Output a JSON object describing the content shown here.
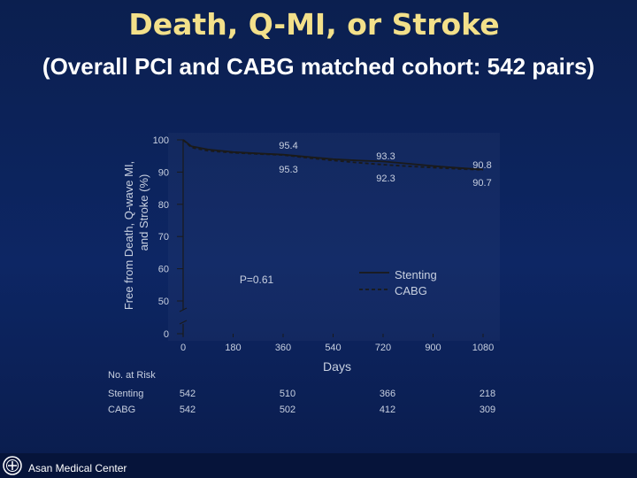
{
  "slide": {
    "title": "Death, Q-MI, or Stroke",
    "subtitle": "(Overall PCI and CABG matched cohort: 542 pairs)",
    "footer": "Asan Medical Center"
  },
  "colors": {
    "background": "#0d2664",
    "title": "#f3e08a",
    "text": "#ffffff",
    "chart_text": "#c8d0e0",
    "line": "#1a1a1a"
  },
  "chart_data": {
    "type": "line",
    "ylabel": "Free from Death, Q-wave MI, and Stroke (%)",
    "xlabel": "Days",
    "xlim": [
      0,
      1080
    ],
    "ylim": [
      0,
      100
    ],
    "y_axis_break": true,
    "y_ticks": [
      0,
      50,
      60,
      70,
      80,
      90,
      100
    ],
    "x_ticks": [
      0,
      180,
      360,
      540,
      720,
      900,
      1080
    ],
    "series": [
      {
        "name": "Stenting",
        "style": "solid",
        "x": [
          0,
          30,
          90,
          180,
          270,
          360,
          450,
          540,
          630,
          720,
          810,
          900,
          990,
          1080
        ],
        "y": [
          100,
          98.0,
          97.0,
          96.2,
          95.8,
          95.4,
          94.7,
          94.0,
          93.6,
          93.3,
          92.6,
          91.9,
          91.3,
          90.8
        ]
      },
      {
        "name": "CABG",
        "style": "dashed",
        "x": [
          0,
          30,
          90,
          180,
          270,
          360,
          450,
          540,
          630,
          720,
          810,
          900,
          990,
          1080
        ],
        "y": [
          100,
          97.6,
          96.6,
          96.0,
          95.6,
          95.3,
          94.4,
          93.6,
          92.9,
          92.3,
          91.8,
          91.4,
          91.0,
          90.7
        ]
      }
    ],
    "annotations": [
      {
        "text": "95.4",
        "x": 360,
        "y": 95.4
      },
      {
        "text": "95.3",
        "x": 360,
        "y": 95.3
      },
      {
        "text": "93.3",
        "x": 720,
        "y": 93.3
      },
      {
        "text": "92.3",
        "x": 720,
        "y": 92.3
      },
      {
        "text": "90.8",
        "x": 1080,
        "y": 90.8
      },
      {
        "text": "90.7",
        "x": 1080,
        "y": 90.7
      },
      {
        "text": "P=0.61"
      }
    ],
    "legend": [
      {
        "name": "Stenting",
        "style": "solid"
      },
      {
        "name": "CABG",
        "style": "dashed"
      }
    ],
    "legend_placement": "right",
    "at_risk": {
      "title": "No. at Risk",
      "x": [
        0,
        360,
        720,
        1080
      ],
      "rows": [
        {
          "label": "Stenting",
          "values": [
            "542",
            "510",
            "366",
            "218"
          ]
        },
        {
          "label": "CABG",
          "values": [
            "542",
            "502",
            "412",
            "309"
          ]
        }
      ]
    }
  }
}
